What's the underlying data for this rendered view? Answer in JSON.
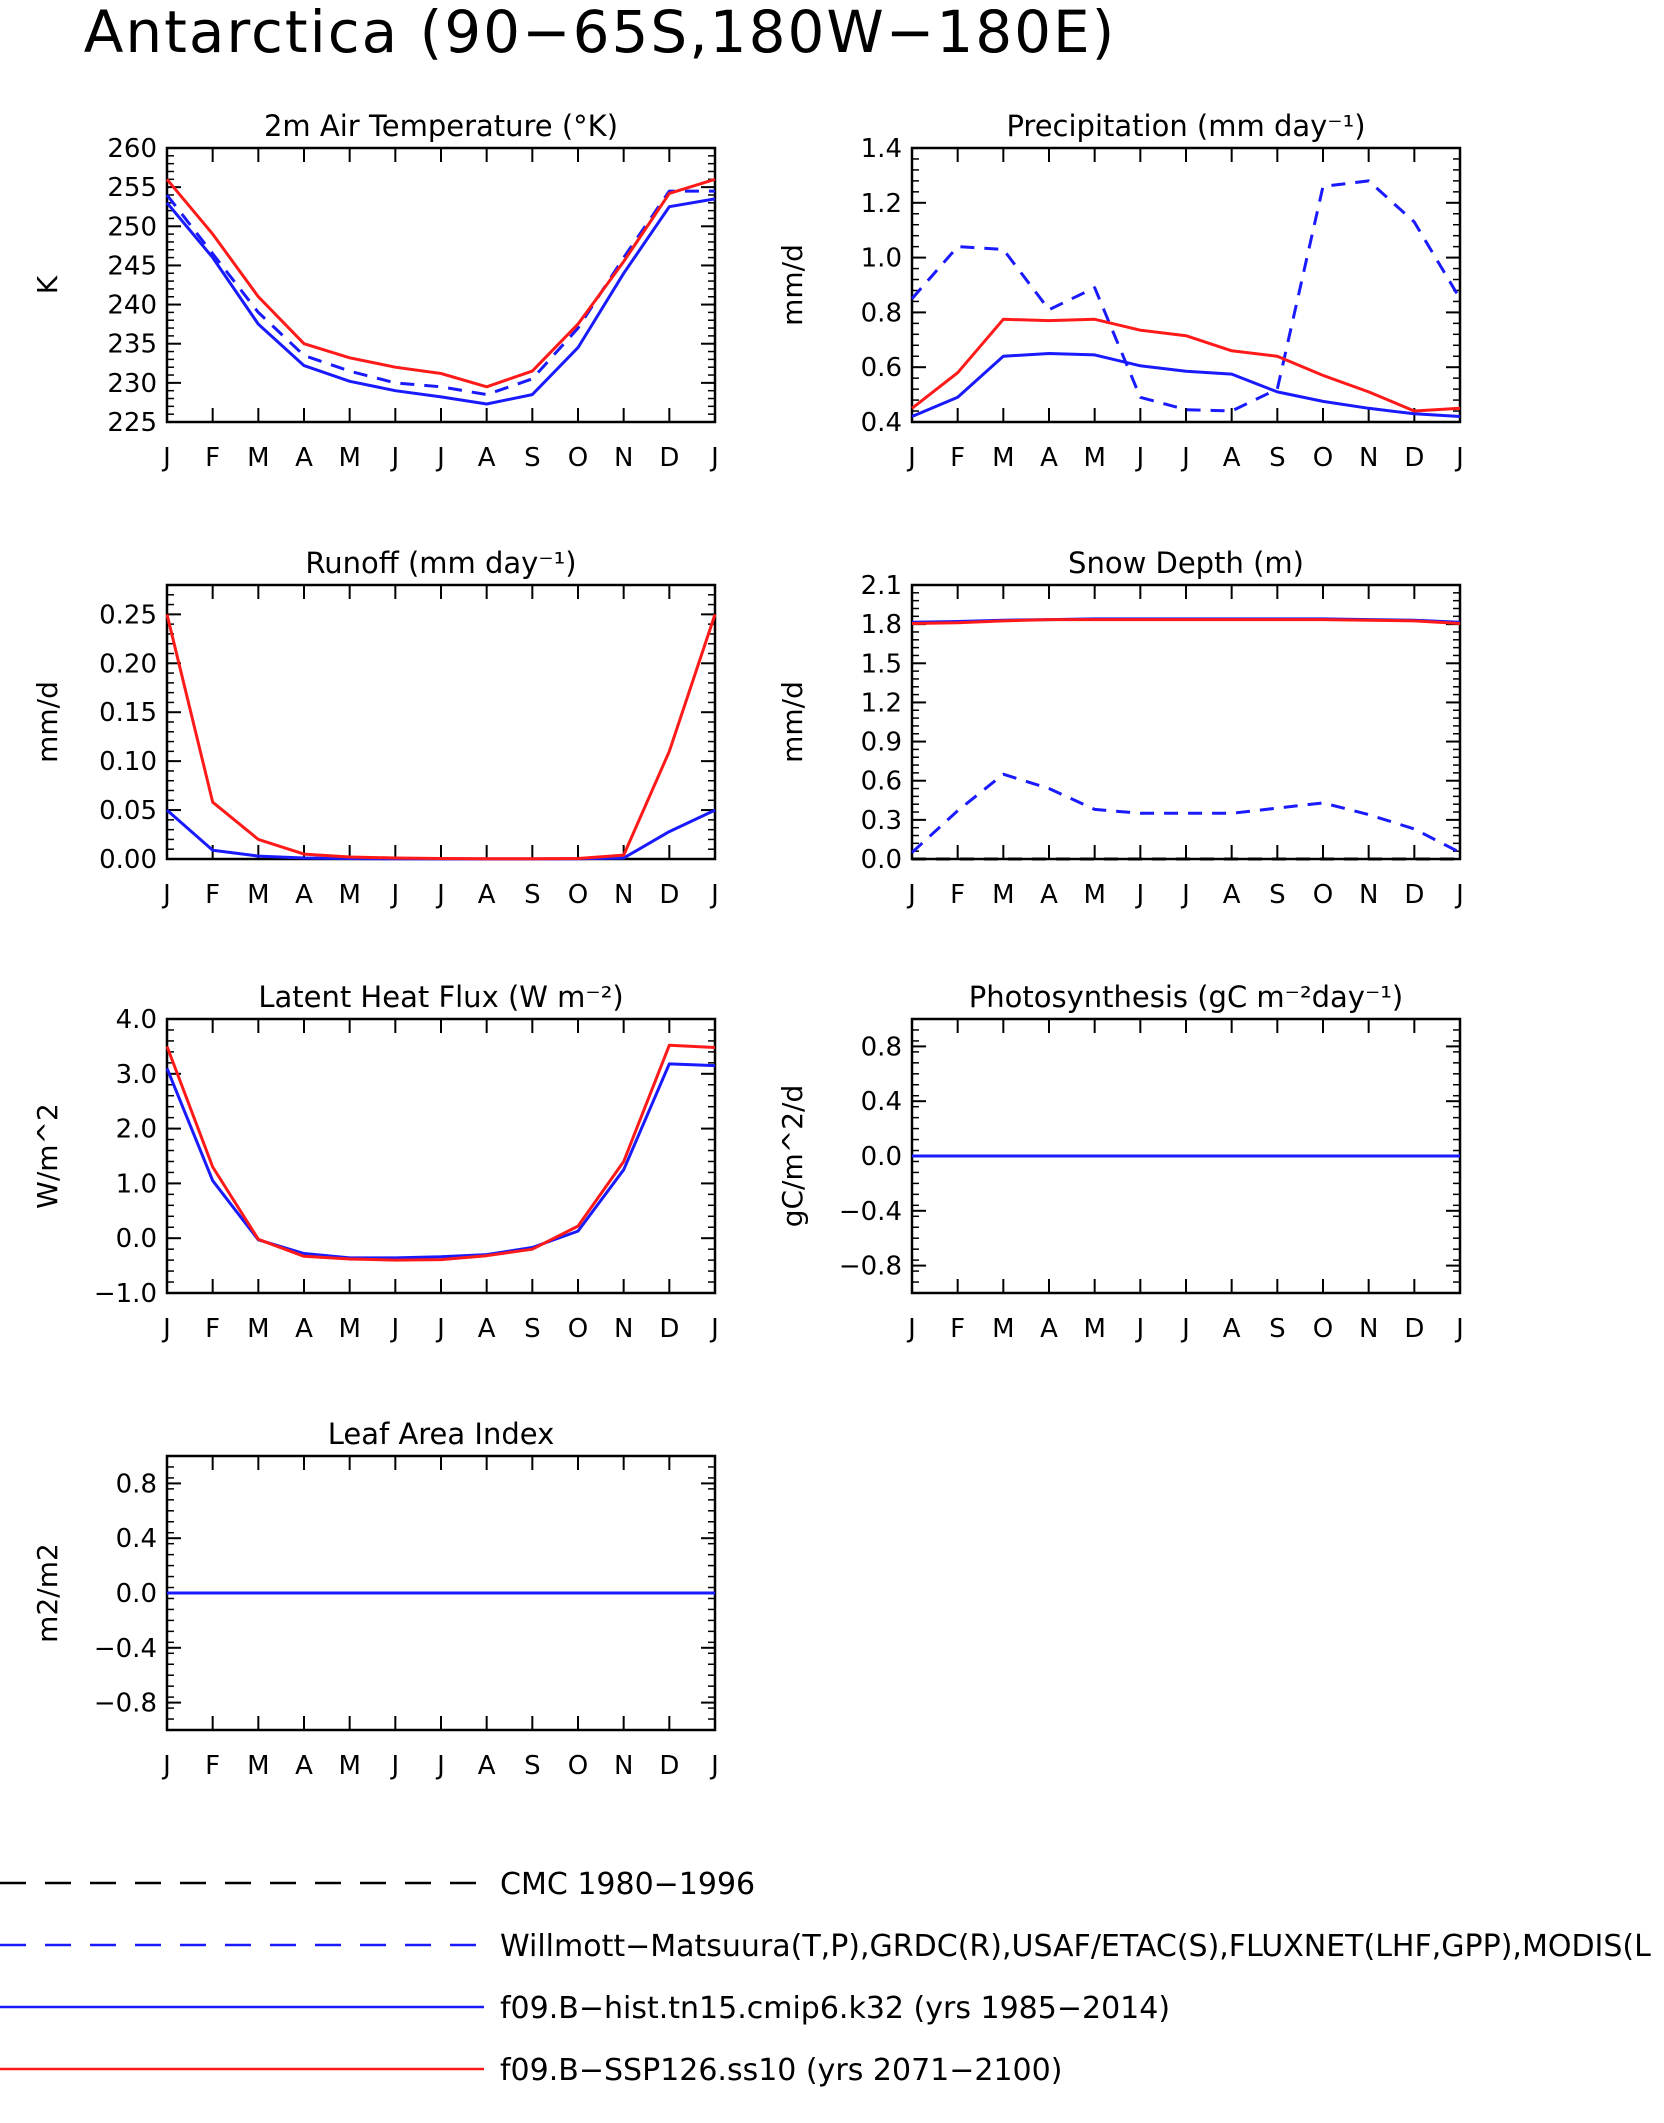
{
  "page": {
    "title": "Antarctica (90−65S,180W−180E)"
  },
  "colors": {
    "obs_cmc": "#000000",
    "obs_wm": "#1a1aff",
    "hist": "#1a1aff",
    "ssp": "#ff1a1a"
  },
  "legend": [
    {
      "label": "CMC 1980−1996",
      "color": "#000000",
      "style": "dash"
    },
    {
      "label": "Willmott−Matsuura(T,P),GRDC(R),USAF/ETAC(S),FLUXNET(LHF,GPP),MODIS(L",
      "color": "#1a1aff",
      "style": "dash"
    },
    {
      "label": "f09.B−hist.tn15.cmip6.k32 (yrs 1985−2014)",
      "color": "#1a1aff",
      "style": "solid"
    },
    {
      "label": "f09.B−SSP126.ss10 (yrs 2071−2100)",
      "color": "#ff1a1a",
      "style": "solid"
    }
  ],
  "chart_data": [
    {
      "type": "line",
      "title": "2m Air Temperature (°K)",
      "ylabel": "K",
      "categories": [
        "J",
        "F",
        "M",
        "A",
        "M",
        "J",
        "J",
        "A",
        "S",
        "O",
        "N",
        "D",
        "J"
      ],
      "ylim": [
        225,
        260
      ],
      "yticks": [
        225,
        230,
        235,
        240,
        245,
        250,
        255,
        260
      ],
      "ytick_labels": [
        "225",
        "230",
        "235",
        "240",
        "245",
        "250",
        "255",
        "260"
      ],
      "series": [
        {
          "role": "obs",
          "color": "#1a1aff",
          "style": "dash",
          "values": [
            254,
            246.5,
            239,
            233.5,
            231.5,
            230,
            229.5,
            228.5,
            230.5,
            237,
            246,
            254.5,
            254.5
          ]
        },
        {
          "role": "hist",
          "color": "#1a1aff",
          "style": "solid",
          "values": [
            253,
            246,
            237.5,
            232.2,
            230.2,
            229,
            228.2,
            227.3,
            228.5,
            234.5,
            244,
            252.5,
            253.5
          ]
        },
        {
          "role": "ssp",
          "color": "#ff1a1a",
          "style": "solid",
          "values": [
            256,
            249,
            241,
            235,
            233.2,
            232,
            231.2,
            229.5,
            231.5,
            237.5,
            245.5,
            254.2,
            256
          ]
        }
      ]
    },
    {
      "type": "line",
      "title": "Precipitation (mm day⁻¹)",
      "ylabel": "mm/d",
      "categories": [
        "J",
        "F",
        "M",
        "A",
        "M",
        "J",
        "J",
        "A",
        "S",
        "O",
        "N",
        "D",
        "J"
      ],
      "ylim": [
        0.4,
        1.4
      ],
      "yticks": [
        0.4,
        0.6,
        0.8,
        1.0,
        1.2,
        1.4
      ],
      "ytick_labels": [
        "0.4",
        "0.6",
        "0.8",
        "1.0",
        "1.2",
        "1.4"
      ],
      "series": [
        {
          "role": "obs",
          "color": "#1a1aff",
          "style": "dash",
          "values": [
            0.85,
            1.04,
            1.03,
            0.81,
            0.89,
            0.49,
            0.445,
            0.44,
            0.52,
            1.26,
            1.28,
            1.13,
            0.85
          ]
        },
        {
          "role": "hist",
          "color": "#1a1aff",
          "style": "solid",
          "values": [
            0.42,
            0.49,
            0.64,
            0.65,
            0.645,
            0.605,
            0.585,
            0.575,
            0.51,
            0.475,
            0.45,
            0.43,
            0.42
          ]
        },
        {
          "role": "ssp",
          "color": "#ff1a1a",
          "style": "solid",
          "values": [
            0.45,
            0.58,
            0.775,
            0.77,
            0.775,
            0.735,
            0.715,
            0.66,
            0.64,
            0.57,
            0.51,
            0.44,
            0.45
          ]
        }
      ]
    },
    {
      "type": "line",
      "title": "Runoff (mm day⁻¹)",
      "ylabel": "mm/d",
      "categories": [
        "J",
        "F",
        "M",
        "A",
        "M",
        "J",
        "J",
        "A",
        "S",
        "O",
        "N",
        "D",
        "J"
      ],
      "ylim": [
        0,
        0.28
      ],
      "yticks": [
        0,
        0.05,
        0.1,
        0.15,
        0.2,
        0.25
      ],
      "ytick_labels": [
        "0.00",
        "0.05",
        "0.10",
        "0.15",
        "0.20",
        "0.25"
      ],
      "series": [
        {
          "role": "hist",
          "color": "#1a1aff",
          "style": "solid",
          "values": [
            0.05,
            0.009,
            0.003,
            0.001,
            0.0005,
            0.0002,
            0.0001,
            0.0001,
            0.0001,
            0.0003,
            0.001,
            0.028,
            0.05
          ]
        },
        {
          "role": "ssp",
          "color": "#ff1a1a",
          "style": "solid",
          "values": [
            0.25,
            0.058,
            0.02,
            0.005,
            0.002,
            0.001,
            0.0005,
            0.0003,
            0.0003,
            0.0005,
            0.004,
            0.11,
            0.25
          ]
        }
      ]
    },
    {
      "type": "line",
      "title": "Snow Depth (m)",
      "ylabel": "mm/d",
      "categories": [
        "J",
        "F",
        "M",
        "A",
        "M",
        "J",
        "J",
        "A",
        "S",
        "O",
        "N",
        "D",
        "J"
      ],
      "ylim": [
        0,
        2.1
      ],
      "yticks": [
        0,
        0.3,
        0.6,
        0.9,
        1.2,
        1.5,
        1.8,
        2.1
      ],
      "ytick_labels": [
        "0.0",
        "0.3",
        "0.6",
        "0.9",
        "1.2",
        "1.5",
        "1.8",
        "2.1"
      ],
      "series": [
        {
          "role": "obs_cmc",
          "color": "#000000",
          "style": "dash",
          "values": [
            0,
            0,
            0,
            0,
            0,
            0,
            0,
            0,
            0,
            0,
            0,
            0,
            0
          ]
        },
        {
          "role": "obs",
          "color": "#1a1aff",
          "style": "dash",
          "values": [
            0.05,
            0.37,
            0.65,
            0.54,
            0.38,
            0.35,
            0.35,
            0.35,
            0.39,
            0.43,
            0.34,
            0.23,
            0.05
          ]
        },
        {
          "role": "hist",
          "color": "#1a1aff",
          "style": "solid",
          "values": [
            1.815,
            1.82,
            1.83,
            1.835,
            1.84,
            1.84,
            1.84,
            1.84,
            1.84,
            1.84,
            1.835,
            1.83,
            1.815
          ]
        },
        {
          "role": "ssp",
          "color": "#ff1a1a",
          "style": "solid",
          "values": [
            1.805,
            1.81,
            1.825,
            1.835,
            1.835,
            1.835,
            1.835,
            1.835,
            1.835,
            1.835,
            1.83,
            1.825,
            1.805
          ]
        }
      ]
    },
    {
      "type": "line",
      "title": "Latent Heat Flux (W m⁻²)",
      "ylabel": "W/m^2",
      "categories": [
        "J",
        "F",
        "M",
        "A",
        "M",
        "J",
        "J",
        "A",
        "S",
        "O",
        "N",
        "D",
        "J"
      ],
      "ylim": [
        -1.0,
        4.0
      ],
      "yticks": [
        -1,
        0,
        1,
        2,
        3,
        4
      ],
      "ytick_labels": [
        "−1.0",
        "0.0",
        "1.0",
        "2.0",
        "3.0",
        "4.0"
      ],
      "series": [
        {
          "role": "hist",
          "color": "#1a1aff",
          "style": "solid",
          "values": [
            3.1,
            1.05,
            -0.03,
            -0.28,
            -0.36,
            -0.36,
            -0.34,
            -0.3,
            -0.17,
            0.13,
            1.25,
            3.18,
            3.15
          ]
        },
        {
          "role": "ssp",
          "color": "#ff1a1a",
          "style": "solid",
          "values": [
            3.5,
            1.3,
            -0.02,
            -0.33,
            -0.38,
            -0.4,
            -0.39,
            -0.32,
            -0.2,
            0.22,
            1.4,
            3.52,
            3.48
          ]
        }
      ]
    },
    {
      "type": "line",
      "title": "Photosynthesis (gC m⁻²day⁻¹)",
      "ylabel": "gC/m^2/d",
      "categories": [
        "J",
        "F",
        "M",
        "A",
        "M",
        "J",
        "J",
        "A",
        "S",
        "O",
        "N",
        "D",
        "J"
      ],
      "ylim": [
        -1.0,
        1.0
      ],
      "yticks": [
        -0.8,
        -0.4,
        0,
        0.4,
        0.8
      ],
      "ytick_labels": [
        "−0.8",
        "−0.4",
        "0.0",
        "0.4",
        "0.8"
      ],
      "series": [
        {
          "role": "ssp",
          "color": "#ff1a1a",
          "style": "solid",
          "values": [
            0,
            0,
            0,
            0,
            0,
            0,
            0,
            0,
            0,
            0,
            0,
            0,
            0
          ]
        },
        {
          "role": "hist",
          "color": "#1a1aff",
          "style": "solid",
          "values": [
            0,
            0,
            0,
            0,
            0,
            0,
            0,
            0,
            0,
            0,
            0,
            0,
            0
          ]
        }
      ]
    },
    {
      "type": "line",
      "title": "Leaf Area Index",
      "ylabel": "m2/m2",
      "categories": [
        "J",
        "F",
        "M",
        "A",
        "M",
        "J",
        "J",
        "A",
        "S",
        "O",
        "N",
        "D",
        "J"
      ],
      "ylim": [
        -1.0,
        1.0
      ],
      "yticks": [
        -0.8,
        -0.4,
        0,
        0.4,
        0.8
      ],
      "ytick_labels": [
        "−0.8",
        "−0.4",
        "0.0",
        "0.4",
        "0.8"
      ],
      "series": [
        {
          "role": "ssp",
          "color": "#ff1a1a",
          "style": "solid",
          "values": [
            0,
            0,
            0,
            0,
            0,
            0,
            0,
            0,
            0,
            0,
            0,
            0,
            0
          ]
        },
        {
          "role": "hist",
          "color": "#1a1aff",
          "style": "solid",
          "values": [
            0,
            0,
            0,
            0,
            0,
            0,
            0,
            0,
            0,
            0,
            0,
            0,
            0
          ]
        }
      ]
    }
  ]
}
